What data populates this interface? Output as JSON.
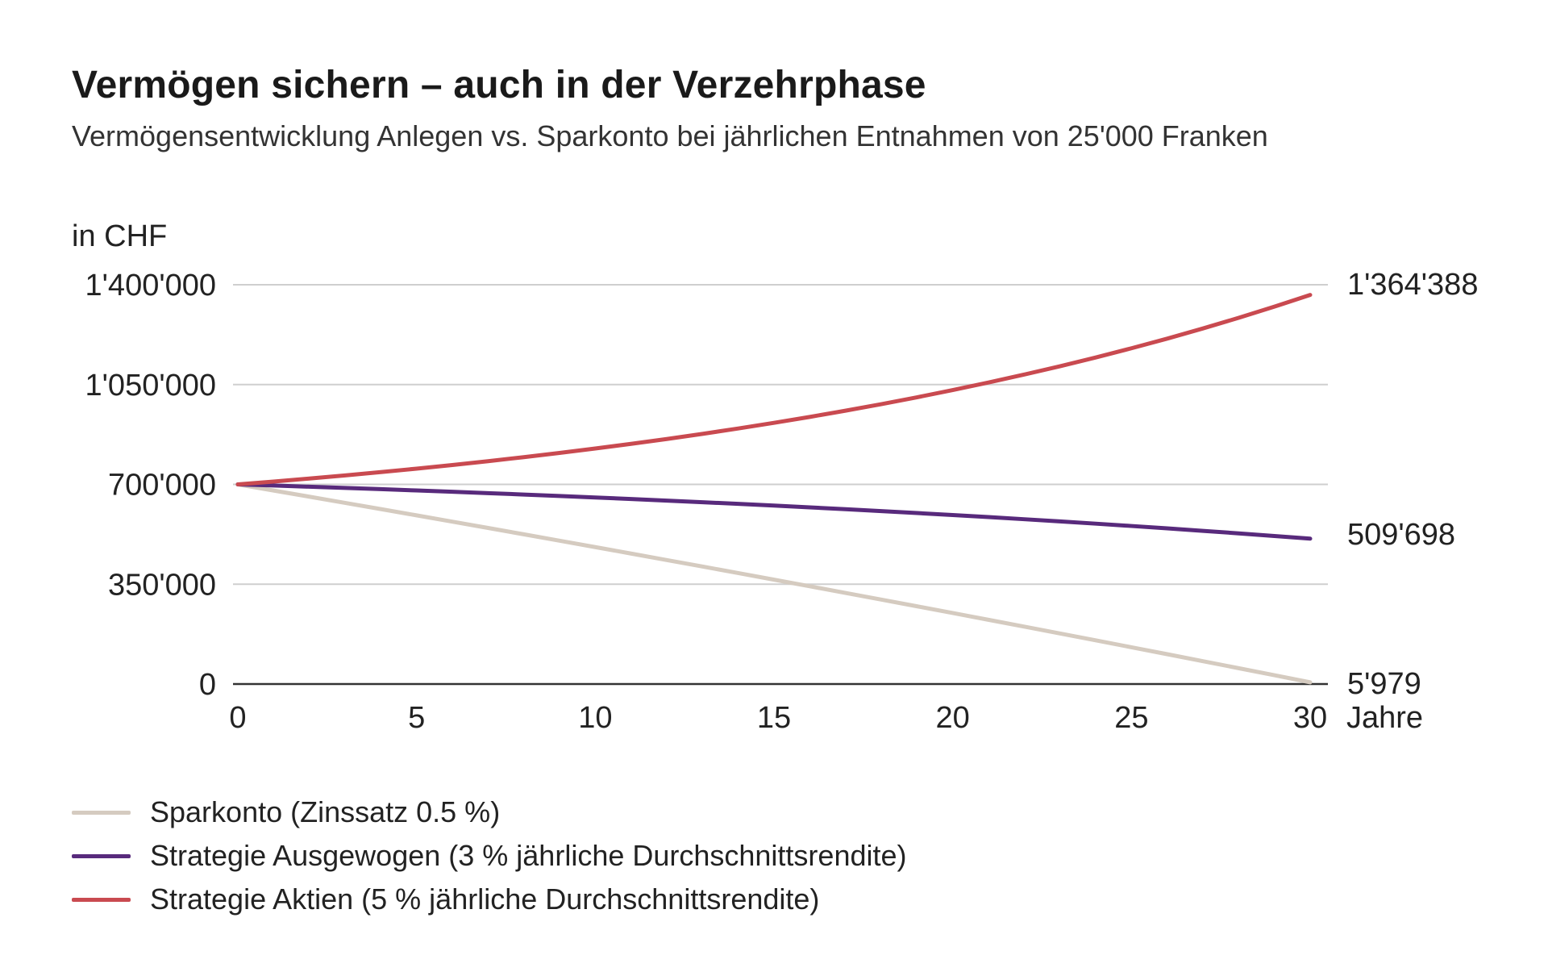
{
  "chart_data": {
    "type": "line",
    "title": "Vermögen sichern – auch in der Verzehrphase",
    "subtitle": "Vermögensentwicklung Anlegen vs. Sparkonto bei jährlichen Entnahmen von 25'000 Franken",
    "ylabel": "in CHF",
    "xlabel": "Jahre",
    "xlim": [
      0,
      30
    ],
    "ylim": [
      0,
      1400000
    ],
    "grid": true,
    "legend_position": "bottom-left",
    "x_ticks": [
      "0",
      "5",
      "10",
      "15",
      "20",
      "25",
      "30"
    ],
    "y_ticks": [
      "0",
      "350'000",
      "700'000",
      "1'050'000",
      "1'400'000"
    ],
    "y_tick_values": [
      0,
      350000,
      700000,
      1050000,
      1400000
    ],
    "x": [
      0,
      1,
      2,
      3,
      4,
      5,
      6,
      7,
      8,
      9,
      10,
      11,
      12,
      13,
      14,
      15,
      16,
      17,
      18,
      19,
      20,
      21,
      22,
      23,
      24,
      25,
      26,
      27,
      28,
      29,
      30
    ],
    "series": [
      {
        "name": "Sparkonto (Zinssatz 0.5 %)",
        "color": "#d5cbc0",
        "end_label": "5'979",
        "values": [
          700000,
          678500,
          656892,
          635177,
          613351,
          591421,
          569375,
          547225,
          524960,
          502583,
          480098,
          457497,
          434785,
          411960,
          389020,
          365963,
          342795,
          319506,
          296105,
          272584,
          248947,
          225194,
          201320,
          177326,
          153212,
          128977,
          104622,
          80146,
          55546,
          30825,
          5979
        ]
      },
      {
        "name": "Strategie Ausgewogen (3 % jährliche Durchschnittsrendite)",
        "color": "#582a7c",
        "end_label": "509'698",
        "values": [
          700000,
          696000,
          691880,
          687637,
          683265,
          678764,
          674126,
          669350,
          664431,
          659364,
          654145,
          648769,
          643232,
          637529,
          631655,
          625604,
          619372,
          612953,
          606342,
          599533,
          592519,
          585294,
          577853,
          570189,
          562294,
          554163,
          545788,
          537162,
          528276,
          519125,
          509698
        ]
      },
      {
        "name": "Strategie Aktien (5 % jährliche Durchschnittsrendite)",
        "color": "#c94a50",
        "end_label": "1'364'388",
        "values": [
          700000,
          710000,
          720500,
          731525,
          743101,
          755256,
          768019,
          781420,
          795491,
          810266,
          825779,
          842068,
          859171,
          877130,
          895986,
          915786,
          936575,
          958404,
          981324,
          1005390,
          1030660,
          1057193,
          1085052,
          1114305,
          1145020,
          1177271,
          1211135,
          1246691,
          1284026,
          1323227,
          1364388
        ]
      }
    ]
  }
}
